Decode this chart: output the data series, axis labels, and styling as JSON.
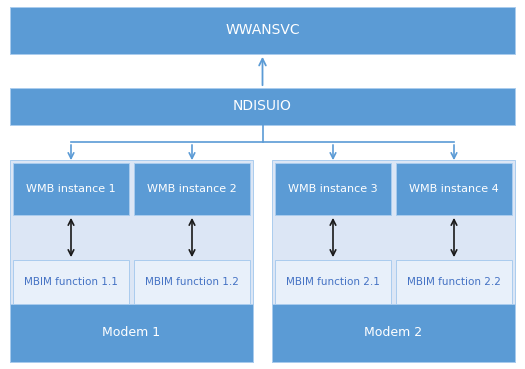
{
  "bg_color": "#ffffff",
  "box_color_dark": "#5b9bd5",
  "box_color_light": "#dce6f5",
  "text_color_dark": "#ffffff",
  "text_color_light": "#4472c4",
  "arrow_color": "#5b9bd5",
  "arrow_color_black": "#1a1a1a",
  "wwansvc_label": "WWANSVC",
  "ndisuio_label": "NDISUIO",
  "wmb_labels": [
    "WMB instance 1",
    "WMB instance 2",
    "WMB instance 3",
    "WMB instance 4"
  ],
  "mbim_labels": [
    "MBIM function 1.1",
    "MBIM function 1.2",
    "MBIM function 2.1",
    "MBIM function 2.2"
  ],
  "modem_labels": [
    "Modem 1",
    "Modem 2"
  ],
  "fig_width": 5.25,
  "fig_height": 3.69,
  "dpi": 100
}
